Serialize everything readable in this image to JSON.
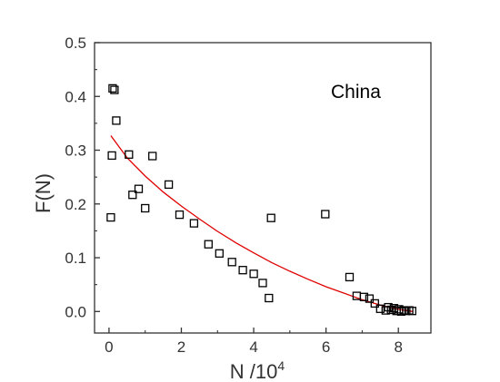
{
  "chart_data": {
    "type": "scatter",
    "annotation": "China",
    "xlabel": "N /10",
    "xlabel_sup": "4",
    "ylabel": "F(N)",
    "xlim": [
      -0.4,
      8.9
    ],
    "ylim": [
      -0.04,
      0.5
    ],
    "x_ticks": [
      0,
      2,
      4,
      6,
      8
    ],
    "y_ticks": [
      0.0,
      0.1,
      0.2,
      0.3,
      0.4,
      0.5
    ],
    "x_tick_labels": [
      "0",
      "2",
      "4",
      "6",
      "8"
    ],
    "y_tick_labels": [
      "0.0",
      "0.1",
      "0.2",
      "0.3",
      "0.4",
      "0.5"
    ],
    "grid": false,
    "colors": {
      "points": "#000000",
      "fit": "#e00000",
      "axis": "#333333"
    },
    "series": [
      {
        "marker": "open-square",
        "x": [
          0.05,
          0.08,
          0.1,
          0.15,
          0.2,
          0.55,
          0.65,
          0.82,
          1.0,
          1.2,
          1.65,
          1.95,
          2.35,
          2.75,
          3.05,
          3.4,
          3.7,
          4.0,
          4.25,
          4.42,
          4.48,
          5.98,
          6.65,
          6.85,
          7.05,
          7.2,
          7.35,
          7.5,
          7.65,
          7.72,
          7.8,
          7.88,
          7.95,
          8.02,
          8.08,
          8.15,
          8.22,
          8.3,
          8.38
        ],
        "y": [
          0.175,
          0.29,
          0.415,
          0.412,
          0.355,
          0.292,
          0.217,
          0.228,
          0.192,
          0.289,
          0.236,
          0.18,
          0.164,
          0.125,
          0.108,
          0.092,
          0.077,
          0.07,
          0.053,
          0.025,
          0.174,
          0.181,
          0.064,
          0.029,
          0.027,
          0.024,
          0.015,
          0.005,
          0.002,
          0.008,
          0.003,
          0.006,
          0.001,
          0.004,
          0.0,
          0.002,
          0.001,
          0.002,
          0.001
        ]
      },
      {
        "type": "line",
        "x": [
          0.05,
          0.5,
          1.0,
          1.5,
          2.0,
          2.5,
          3.0,
          3.5,
          4.0,
          4.5,
          5.0,
          5.5,
          6.0,
          6.5,
          7.0,
          7.5,
          8.0,
          8.4
        ],
        "y": [
          0.327,
          0.286,
          0.252,
          0.222,
          0.196,
          0.172,
          0.149,
          0.128,
          0.109,
          0.091,
          0.075,
          0.06,
          0.046,
          0.034,
          0.022,
          0.012,
          0.004,
          0.0
        ]
      }
    ]
  }
}
